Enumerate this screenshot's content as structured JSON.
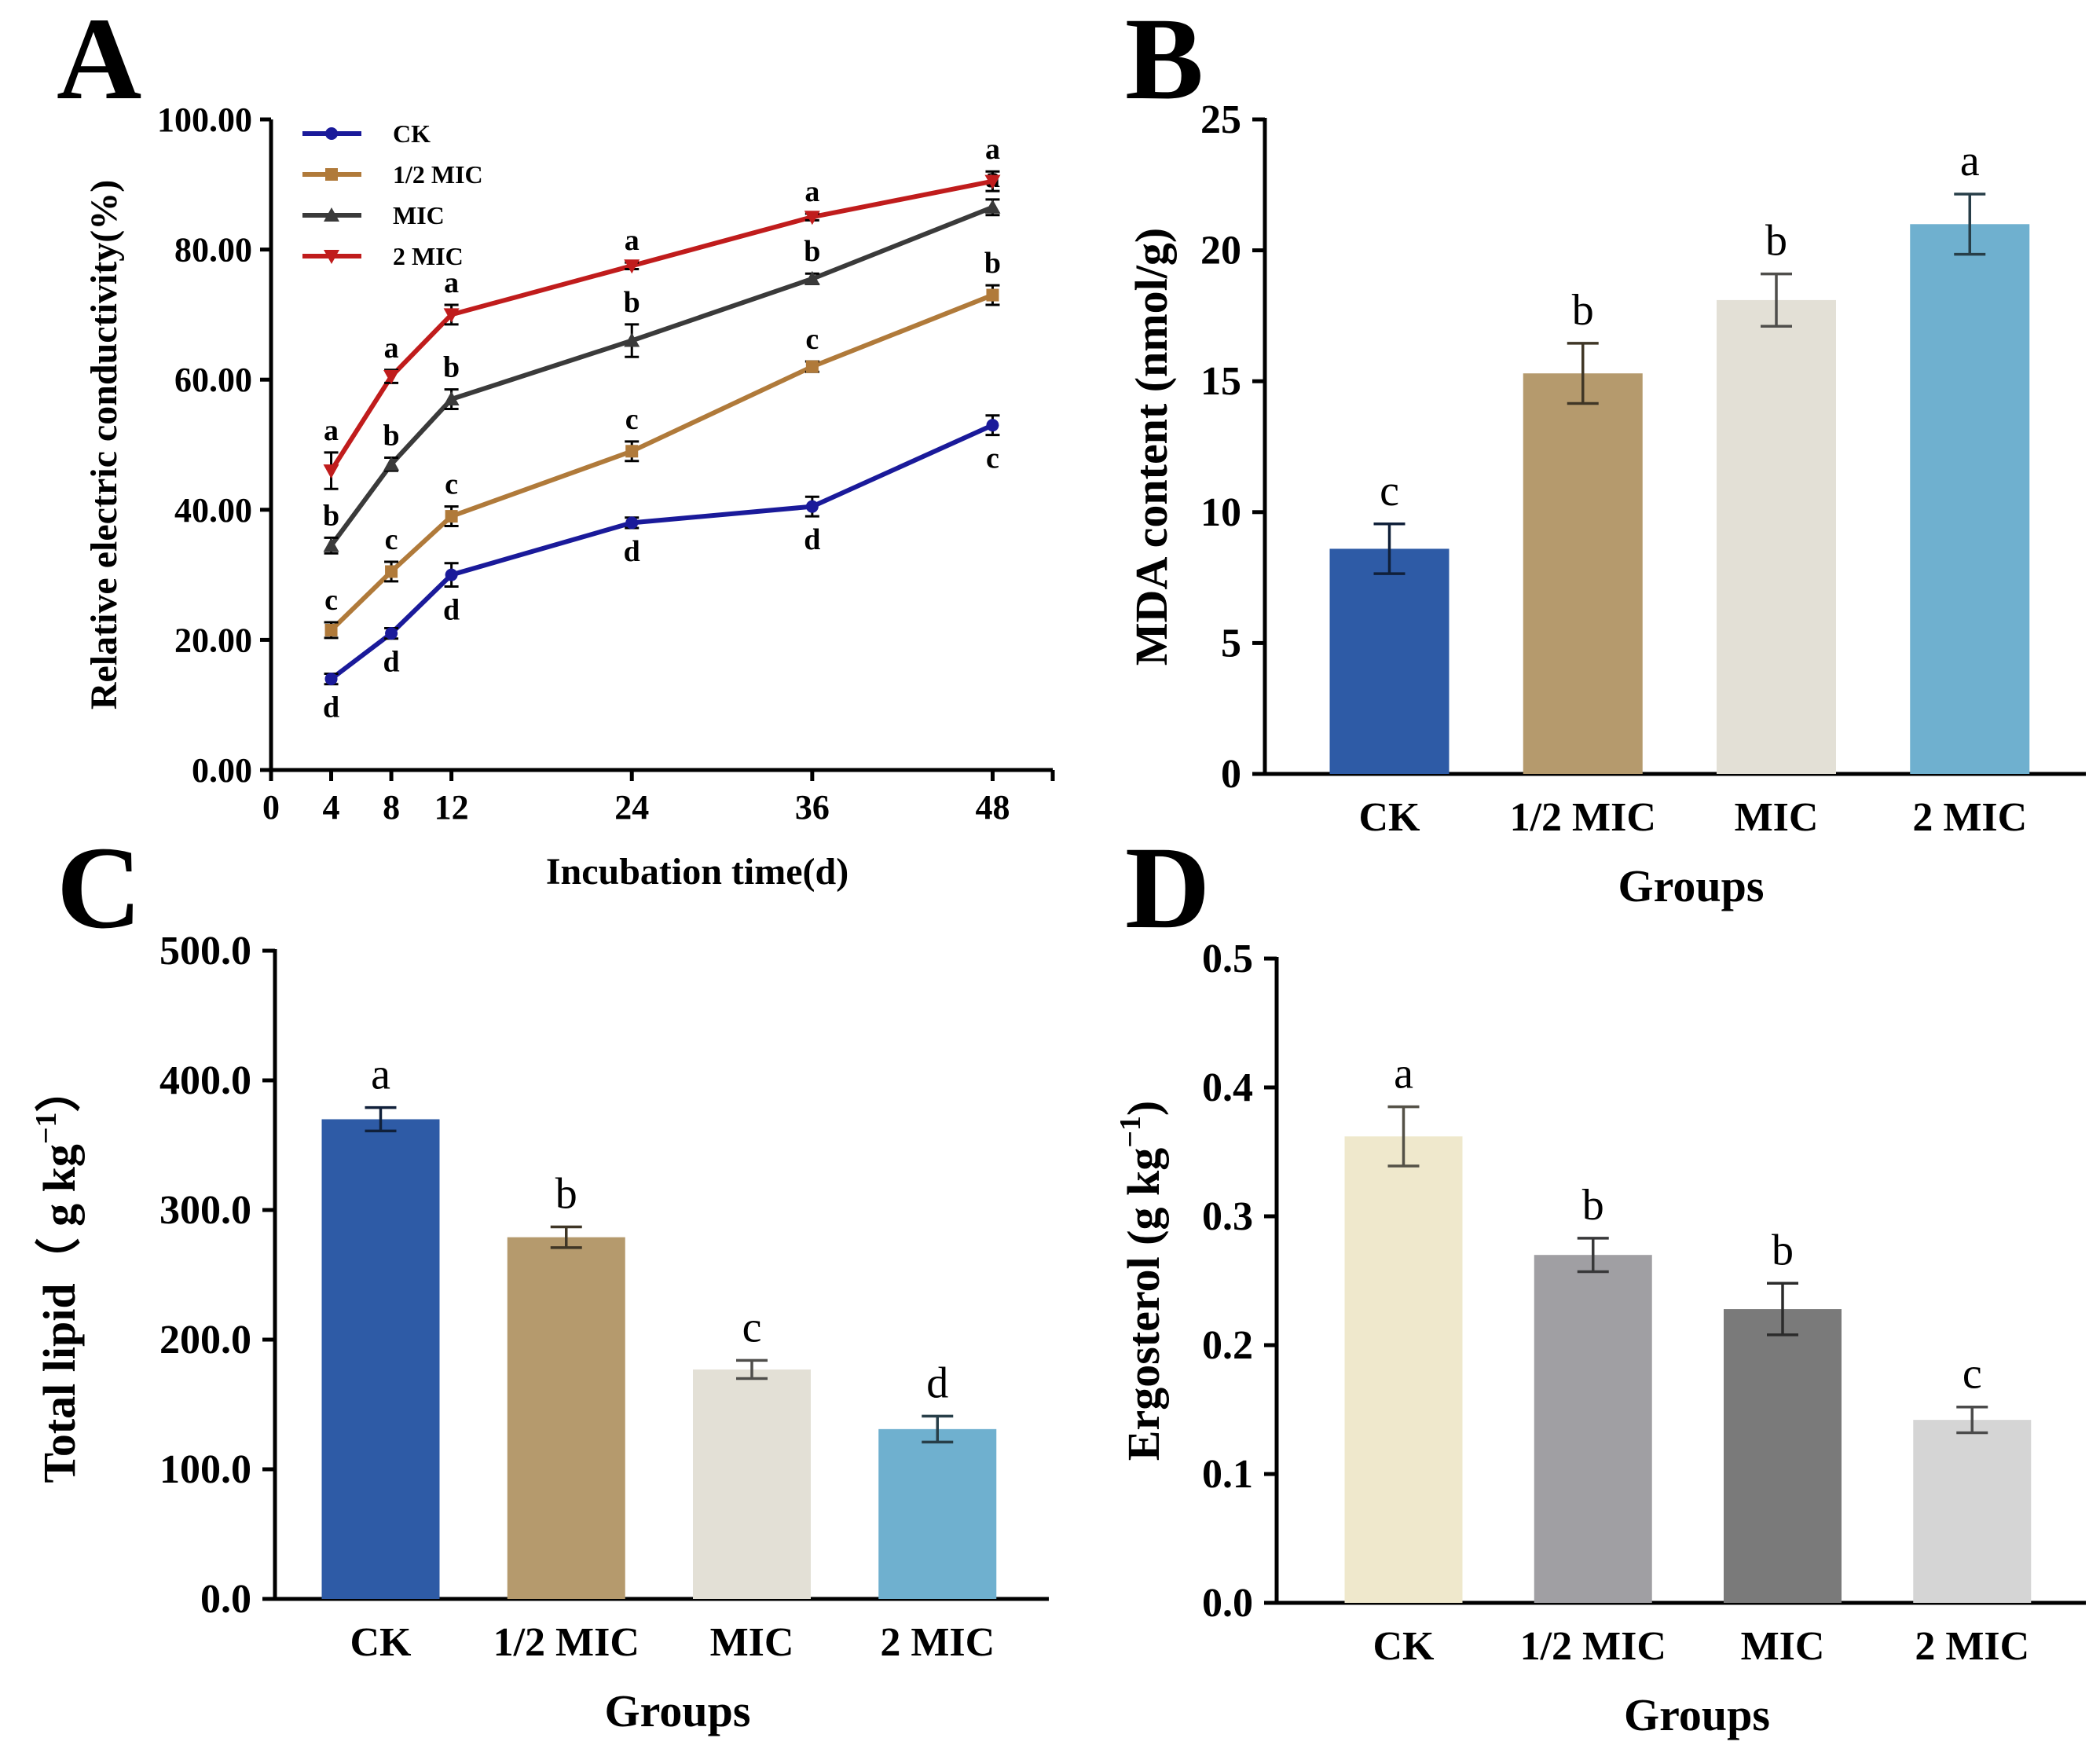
{
  "chart_data": [
    {
      "panel": "A",
      "type": "line",
      "xlabel": "Incubation time(d)",
      "ylabel": "Relative electric conductivity(%)",
      "x": [
        4,
        8,
        12,
        24,
        36,
        48
      ],
      "xlim": [
        0,
        52
      ],
      "xticks": [
        "0",
        "4",
        "8",
        "12",
        "24",
        "36",
        "48"
      ],
      "ylim": [
        0,
        100
      ],
      "yticks": [
        "0.00",
        "20.00",
        "40.00",
        "60.00",
        "80.00",
        "100.00"
      ],
      "legend_position": "top-left",
      "series": [
        {
          "name": "CK",
          "color": "#1a1a9a",
          "marker": "circle",
          "values": [
            14.0,
            21.0,
            30.0,
            38.0,
            40.5,
            53.0
          ],
          "errors": [
            0.8,
            0.8,
            1.8,
            0.8,
            1.5,
            1.5
          ],
          "labels": [
            "d",
            "d",
            "d",
            "d",
            "d",
            "c"
          ],
          "label_side": "below"
        },
        {
          "name": "1/2 MIC",
          "color": "#b07a3a",
          "marker": "square",
          "values": [
            21.5,
            30.5,
            39.0,
            49.0,
            62.0,
            73.0
          ],
          "errors": [
            1.2,
            1.5,
            1.5,
            1.5,
            0.8,
            1.5
          ],
          "labels": [
            "c",
            "c",
            "c",
            "c",
            "c",
            "b"
          ],
          "label_side": "above"
        },
        {
          "name": "MIC",
          "color": "#3a3a3a",
          "marker": "triangle-up",
          "values": [
            34.5,
            47.0,
            57.0,
            66.0,
            75.5,
            86.5
          ],
          "errors": [
            1.2,
            1.0,
            1.5,
            2.5,
            0.8,
            1.2
          ],
          "labels": [
            "b",
            "b",
            "b",
            "b",
            "b",
            "a"
          ],
          "label_side": "above"
        },
        {
          "name": "2 MIC",
          "color": "#c01c1c",
          "marker": "triangle-down",
          "values": [
            46.0,
            60.5,
            70.0,
            77.5,
            85.0,
            90.5
          ],
          "errors": [
            2.8,
            1.0,
            1.5,
            0.5,
            0.5,
            1.5
          ],
          "labels": [
            "a",
            "a",
            "a",
            "a",
            "a",
            "a"
          ],
          "label_side": "above"
        }
      ]
    },
    {
      "panel": "B",
      "type": "bar",
      "xlabel": "Groups",
      "ylabel": "MDA content (nmol/g)",
      "categories": [
        "CK",
        "1/2 MIC",
        "MIC",
        "2 MIC"
      ],
      "values": [
        8.6,
        15.3,
        18.1,
        21.0
      ],
      "errors": [
        0.95,
        1.15,
        1.0,
        1.15
      ],
      "labels": [
        "c",
        "b",
        "b",
        "a"
      ],
      "colors": [
        "#2e5ba6",
        "#b59a6d",
        "#e3e0d6",
        "#6fb0cf"
      ],
      "ylim": [
        0,
        25
      ],
      "yticks": [
        "0",
        "5",
        "10",
        "15",
        "20",
        "25"
      ]
    },
    {
      "panel": "C",
      "type": "bar",
      "xlabel": "Groups",
      "ylabel": "Total lipid（ g kg",
      "ylabel_sup": "−1",
      "ylabel_close": "）",
      "categories": [
        "CK",
        "1/2 MIC",
        "MIC",
        "2 MIC"
      ],
      "values": [
        370.0,
        279.0,
        177.0,
        131.0
      ],
      "errors": [
        9.0,
        8.0,
        7.0,
        10.0
      ],
      "labels": [
        "a",
        "b",
        "c",
        "d"
      ],
      "colors": [
        "#2e5ba6",
        "#b59a6d",
        "#e3e0d6",
        "#6fb0cf"
      ],
      "ylim": [
        0,
        500
      ],
      "yticks": [
        "0.0",
        "100.0",
        "200.0",
        "300.0",
        "400.0",
        "500.0"
      ]
    },
    {
      "panel": "D",
      "type": "bar",
      "xlabel": "Groups",
      "ylabel": "Ergosterol (g kg",
      "ylabel_sup": "−1",
      "ylabel_close": ")",
      "categories": [
        "CK",
        "1/2 MIC",
        "MIC",
        "2 MIC"
      ],
      "values": [
        0.362,
        0.27,
        0.228,
        0.142
      ],
      "errors": [
        0.023,
        0.013,
        0.02,
        0.01
      ],
      "labels": [
        "a",
        "b",
        "b",
        "c"
      ],
      "colors": [
        "#efe8cc",
        "#a09fa3",
        "#7a7a7a",
        "#d5d5d5"
      ],
      "ylim": [
        0,
        0.5
      ],
      "yticks": [
        "0.0",
        "0.1",
        "0.2",
        "0.3",
        "0.4",
        "0.5"
      ]
    }
  ]
}
